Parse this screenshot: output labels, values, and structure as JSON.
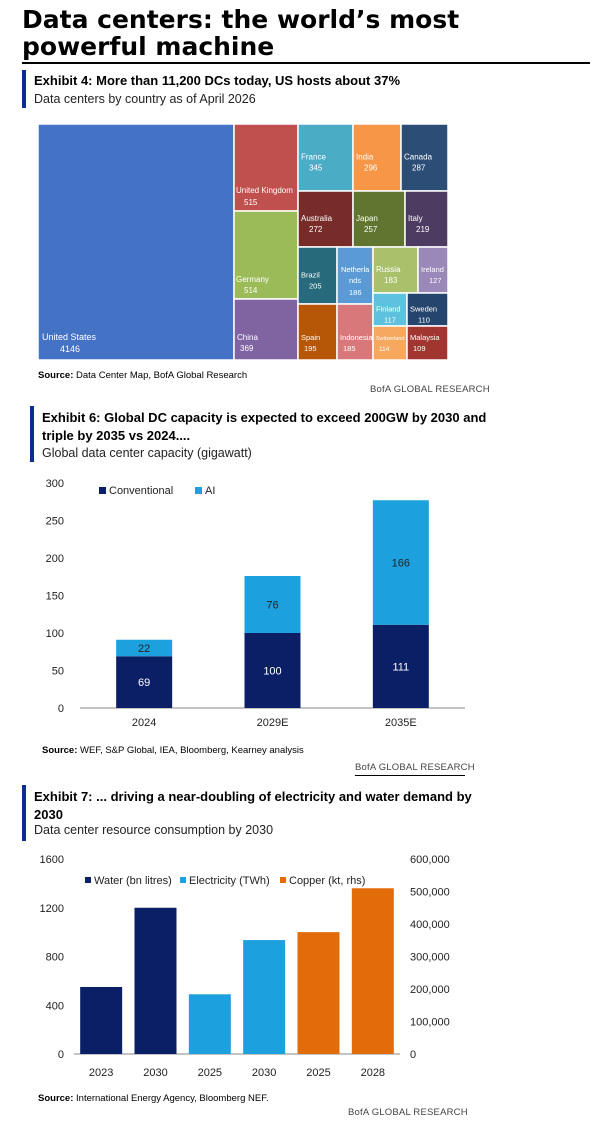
{
  "page": {
    "title": "Data centers: the world’s most powerful machine"
  },
  "exhibit4": {
    "title": "Exhibit 4: More than 11,200 DCs today, US hosts about 37%",
    "subtitle": "Data centers by country as of April 2026",
    "source_label": "Source:",
    "source_text": "Data Center Map, BofA Global Research",
    "brand": "BofA GLOBAL RESEARCH"
  },
  "exhibit6": {
    "title_line1": "Exhibit 6: Global DC capacity is expected to exceed 200GW by 2030 and",
    "title_line2": "triple by 2035 vs 2024....",
    "subtitle": "Global data center capacity (gigawatt)",
    "source_label": "Source:",
    "source_text": "WEF, S&P Global, IEA, Bloomberg, Kearney analysis",
    "brand": "BofA GLOBAL RESEARCH"
  },
  "exhibit7": {
    "title_line1": "Exhibit 7: ... driving a near-doubling of electricity and water demand by",
    "title_line2": "2030",
    "subtitle": "Data center resource consumption by 2030",
    "source_label": "Source:",
    "source_text": "International Energy Agency, Bloomberg NEF.",
    "brand": "BofA GLOBAL RESEARCH"
  },
  "chart_data": [
    {
      "type": "treemap",
      "items": [
        {
          "name": "United States",
          "value": 4146,
          "color": "#4472c4"
        },
        {
          "name": "United Kingdom",
          "value": 515,
          "color": "#c0504d"
        },
        {
          "name": "Germany",
          "value": 514,
          "color": "#9bbb59"
        },
        {
          "name": "China",
          "value": 369,
          "color": "#8064a2"
        },
        {
          "name": "France",
          "value": 345,
          "color": "#4bacc6"
        },
        {
          "name": "India",
          "value": 296,
          "color": "#f79646"
        },
        {
          "name": "Canada",
          "value": 287,
          "color": "#2c4d75"
        },
        {
          "name": "Australia",
          "value": 272,
          "color": "#772c2a"
        },
        {
          "name": "Japan",
          "value": 257,
          "color": "#5f7530"
        },
        {
          "name": "Italy",
          "value": 219,
          "color": "#4d3b62"
        },
        {
          "name": "Brazil",
          "value": 205,
          "color": "#276a7c"
        },
        {
          "name": "Netherlands",
          "value": 186,
          "color": "#5b9bd5"
        },
        {
          "name": "Russia",
          "value": 183,
          "color": "#a9c16a"
        },
        {
          "name": "Ireland",
          "value": 127,
          "color": "#9a88b8"
        },
        {
          "name": "Spain",
          "value": 195,
          "color": "#b65708"
        },
        {
          "name": "Indonesia",
          "value": 185,
          "color": "#d9787a"
        },
        {
          "name": "Finland",
          "value": 117,
          "color": "#5ec1dd"
        },
        {
          "name": "Sweden",
          "value": 110,
          "color": "#26456e"
        },
        {
          "name": "Switzerland",
          "value": 114,
          "color": "#f7a85f"
        },
        {
          "name": "Malaysia",
          "value": 109,
          "color": "#a13530"
        }
      ]
    },
    {
      "type": "bar",
      "stacked": true,
      "categories": [
        "2024",
        "2029E",
        "2035E"
      ],
      "series": [
        {
          "name": "Conventional",
          "values": [
            69,
            100,
            111
          ],
          "color": "#0b1f66"
        },
        {
          "name": "AI",
          "values": [
            22,
            76,
            166
          ],
          "color": "#1ca1de"
        }
      ],
      "ylim": [
        0,
        300
      ],
      "yticks": [
        0,
        50,
        100,
        150,
        200,
        250,
        300
      ],
      "legend": "top-left",
      "grid": false
    },
    {
      "type": "bar",
      "categories": [
        "2023",
        "2030",
        "2025",
        "2030",
        "2025",
        "2028"
      ],
      "series": [
        {
          "name": "Water (bn litres)",
          "color": "#0b1f66",
          "axis": "left",
          "points": [
            {
              "i": 0,
              "value": 550
            },
            {
              "i": 1,
              "value": 1200
            }
          ]
        },
        {
          "name": "Electricity (TWh)",
          "color": "#1ca1de",
          "axis": "left",
          "points": [
            {
              "i": 2,
              "value": 490
            },
            {
              "i": 3,
              "value": 935
            }
          ]
        },
        {
          "name": "Copper (kt, rhs)",
          "color": "#e36c0a",
          "axis": "right",
          "points": [
            {
              "i": 4,
              "value": 375000
            },
            {
              "i": 5,
              "value": 510000
            }
          ]
        }
      ],
      "ylim": [
        0,
        1600
      ],
      "yticks": [
        0,
        400,
        800,
        1200,
        1600
      ],
      "y2lim": [
        0,
        600000
      ],
      "y2ticks": [
        "0",
        "100,000",
        "200,000",
        "300,000",
        "400,000",
        "500,000",
        "600,000"
      ],
      "legend": "top",
      "grid": false
    }
  ]
}
